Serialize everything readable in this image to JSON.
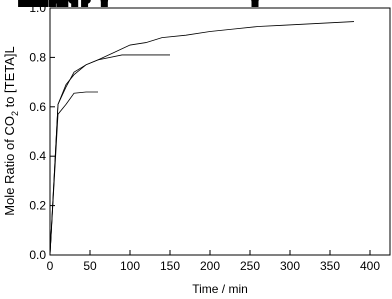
{
  "chart_data": {
    "type": "line",
    "xlabel": "Time / min",
    "ylabel_parts": [
      "Mole Ratio of CO",
      "2",
      " to [TETA]L"
    ],
    "xlim": [
      0,
      425
    ],
    "xticks": [
      0,
      50,
      100,
      150,
      200,
      250,
      300,
      350,
      400
    ],
    "ylim": [
      0,
      1
    ],
    "yticks": [
      {
        "value": 0,
        "label": "0.0"
      },
      0.2,
      0.4,
      0.6,
      0.8,
      {
        "value": 1,
        "label": "1.0"
      }
    ],
    "series": [
      {
        "color": "#000000",
        "marker": "square",
        "x": [
          0,
          10,
          20,
          30,
          45,
          60,
          80,
          100,
          120,
          140,
          170,
          200,
          230,
          260,
          290,
          320,
          350,
          380
        ],
        "values": [
          0,
          0.61,
          0.69,
          0.73,
          0.77,
          0.79,
          0.82,
          0.85,
          0.86,
          0.88,
          0.89,
          0.905,
          0.915,
          0.925,
          0.93,
          0.935,
          0.94,
          0.945
        ]
      },
      {
        "color": "#000000",
        "marker": "circle",
        "x": [
          0,
          10,
          20,
          30,
          45,
          60,
          90,
          120,
          150
        ],
        "values": [
          0,
          0.61,
          0.68,
          0.74,
          0.77,
          0.79,
          0.81,
          0.81,
          0.81
        ]
      },
      {
        "color": "#000000",
        "marker": "triangle",
        "x": [
          0,
          10,
          20,
          30,
          45,
          60
        ],
        "values": [
          0,
          0.57,
          0.61,
          0.655,
          0.66,
          0.66
        ]
      }
    ]
  }
}
